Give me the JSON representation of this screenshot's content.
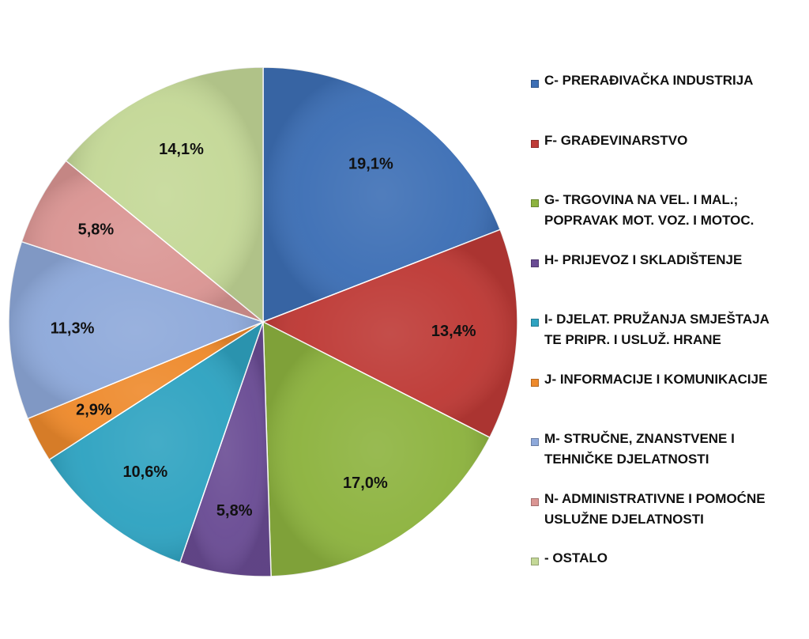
{
  "chart_data": {
    "type": "pie",
    "title": "",
    "slices": [
      {
        "label": "C- PRERAĐIVAČKA INDUSTRIJA",
        "legend_lines": [
          "C- PRERAĐIVAČKA INDUSTRIJA"
        ],
        "value": 19.1,
        "value_label": "19,1%",
        "color": "#3D6FB5"
      },
      {
        "label": "F- GRAĐEVINARSTVO",
        "legend_lines": [
          "F- GRAĐEVINARSTVO"
        ],
        "value": 13.4,
        "value_label": "13,4%",
        "color": "#BE3A36"
      },
      {
        "label": "G- TRGOVINA NA VEL. I MAL.; POPRAVAK MOT. VOZ. I MOTOC.",
        "legend_lines": [
          "G- TRGOVINA NA VEL. I MAL.;",
          "POPRAVAK MOT. VOZ. I MOTOC."
        ],
        "value": 17.0,
        "value_label": "17,0%",
        "color": "#8DB33F"
      },
      {
        "label": "H- PRIJEVOZ I SKLADIŠTENJE",
        "legend_lines": [
          "H- PRIJEVOZ I SKLADIŠTENJE"
        ],
        "value": 5.8,
        "value_label": "5,8%",
        "color": "#6A4C94"
      },
      {
        "label": "I- DJELAT. PRUŽANJA SMJEŠTAJA TE PRIPR. I USLUŽ. HRANE",
        "legend_lines": [
          "I- DJELAT. PRUŽANJA SMJEŠTAJA",
          "TE PRIPR. I USLUŽ. HRANE"
        ],
        "value": 10.6,
        "value_label": "10,6%",
        "color": "#2FA3C1"
      },
      {
        "label": "J- INFORMACIJE I KOMUNIKACIJE",
        "legend_lines": [
          "J- INFORMACIJE I KOMUNIKACIJE"
        ],
        "value": 2.9,
        "value_label": "2,9%",
        "color": "#EE8A2C"
      },
      {
        "label": "M- STRUČNE, ZNANSTVENE I TEHNIČKE DJELATNOSTI",
        "legend_lines": [
          "M- STRUČNE, ZNANSTVENE I",
          "TEHNIČKE DJELATNOSTI"
        ],
        "value": 11.3,
        "value_label": "11,3%",
        "color": "#8EA9DA"
      },
      {
        "label": "N- ADMINISTRATIVNE I POMOĆNE USLUŽNE DJELATNOSTI",
        "legend_lines": [
          "N- ADMINISTRATIVNE I POMOĆNE",
          "USLUŽNE DJELATNOSTI"
        ],
        "value": 5.8,
        "value_label": "5,8%",
        "color": "#DA9593"
      },
      {
        "label": "- OSTALO",
        "legend_lines": [
          "- OSTALO"
        ],
        "value": 14.1,
        "value_label": "14,1%",
        "color": "#C4D897"
      }
    ],
    "start_angle": "12 o'clock",
    "direction": "clockwise",
    "legend_position": "right"
  }
}
